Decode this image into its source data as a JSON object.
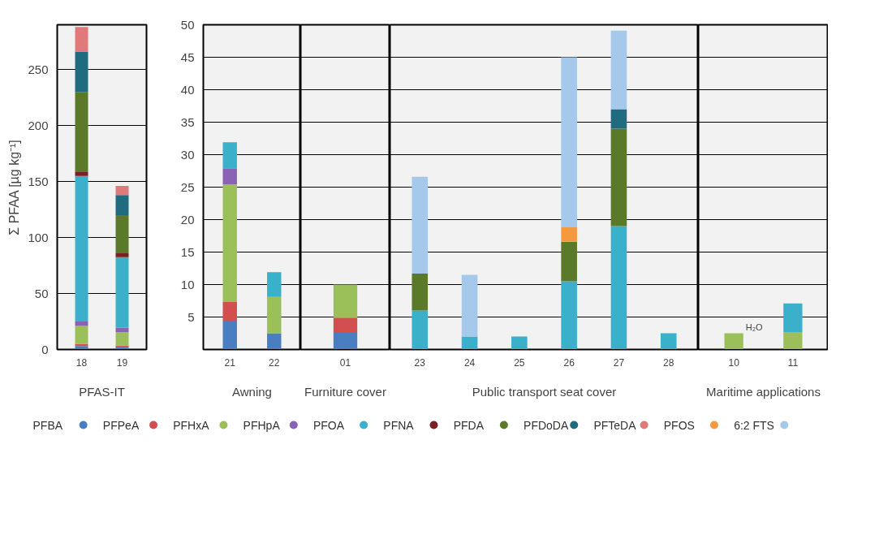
{
  "chart_data": [
    {
      "type": "bar",
      "stacked": true,
      "xlabel": "PFAS-IT",
      "ylabel": "Σ PFAA [µg kg⁻¹]",
      "categories": [
        "18",
        "19"
      ],
      "ylim": [
        0,
        290
      ],
      "yticks": [
        0,
        50,
        100,
        150,
        200,
        250
      ],
      "grid": "y",
      "legend": "bottom",
      "series": [
        {
          "name": "PFBA",
          "color": "#4a7ec2",
          "values": [
            3,
            2
          ]
        },
        {
          "name": "PFPeA",
          "color": "#d24f4f",
          "values": [
            2,
            1.5
          ]
        },
        {
          "name": "PFHxA",
          "color": "#9bc05a",
          "values": [
            16,
            12
          ]
        },
        {
          "name": "PFHpA",
          "color": "#8a63b5",
          "values": [
            4,
            4
          ]
        },
        {
          "name": "PFOA",
          "color": "#3bb0cb",
          "values": [
            130,
            63
          ]
        },
        {
          "name": "PFNA",
          "color": "#7a1f24",
          "values": [
            4,
            3.5
          ]
        },
        {
          "name": "PFDA",
          "color": "#5a7a2a",
          "values": [
            71,
            34
          ]
        },
        {
          "name": "PFDoDA",
          "color": "#1f6b80",
          "values": [
            36,
            18
          ]
        },
        {
          "name": "PFTeDA",
          "color": "#e07a7a",
          "values": [
            22,
            8
          ]
        },
        {
          "name": "PFOS",
          "color": "#f5993f",
          "values": [
            null,
            null
          ]
        },
        {
          "name": "6:2 FTS",
          "color": "#a5c9ea",
          "values": [
            null,
            null
          ]
        }
      ]
    },
    {
      "type": "bar",
      "stacked": true,
      "xlabel": "Awning",
      "categories": [
        "21",
        "22"
      ],
      "ylim": [
        0,
        50
      ],
      "yticks": [
        5,
        10,
        15,
        20,
        25,
        30,
        35,
        40,
        45,
        50
      ],
      "grid": "y",
      "series": [
        {
          "color": "#4a7ec2",
          "values": [
            4.3,
            2.5
          ]
        },
        {
          "color": "#d24f4f",
          "values": [
            3,
            null
          ]
        },
        {
          "color": "#9bc05a",
          "values": [
            18.1,
            5.6
          ]
        },
        {
          "color": "#8a63b5",
          "values": [
            2.5,
            null
          ]
        },
        {
          "color": "#3bb0cb",
          "values": [
            4,
            3.8
          ]
        }
      ]
    },
    {
      "type": "bar",
      "stacked": true,
      "xlabel": "Furniture cover",
      "categories": [
        "01"
      ],
      "ylim": [
        0,
        50
      ],
      "yticks": [
        5,
        10,
        15,
        20,
        25,
        30,
        35,
        40,
        45,
        50
      ],
      "grid": "y",
      "tick_labels": "x",
      "series": [
        {
          "color": "#4a7ec2",
          "values": [
            2.7
          ]
        },
        {
          "color": "#d24f4f",
          "values": [
            2.2
          ]
        },
        {
          "color": "#9bc05a",
          "values": [
            5.1
          ]
        }
      ]
    },
    {
      "type": "bar",
      "stacked": true,
      "xlabel": "Public transport seat cover",
      "categories": [
        "23",
        "24",
        "25",
        "26",
        "27",
        "28"
      ],
      "ylim": [
        0,
        50
      ],
      "yticks": [
        5,
        10,
        15,
        20,
        25,
        30,
        35,
        40,
        45,
        50
      ],
      "grid": "y",
      "tick_labels": "x",
      "series": [
        {
          "color": "#3bb0cb",
          "values": [
            6,
            2,
            2,
            10.5,
            19,
            2.5
          ]
        },
        {
          "color": "#5a7a2a",
          "values": [
            5.7,
            null,
            null,
            6.1,
            15,
            null
          ]
        },
        {
          "color": "#1f6b80",
          "values": [
            null,
            null,
            null,
            null,
            3,
            null
          ]
        },
        {
          "color": "#f5993f",
          "values": [
            null,
            null,
            null,
            2.2,
            null,
            null
          ]
        },
        {
          "color": "#a5c9ea",
          "values": [
            14.9,
            9.5,
            null,
            26.2,
            12.1,
            null
          ]
        }
      ]
    },
    {
      "type": "bar",
      "stacked": true,
      "xlabel": "Maritime applications",
      "categories": [
        "10",
        "11"
      ],
      "ylim": [
        0,
        50
      ],
      "yticks": [
        5,
        10,
        15,
        20,
        25,
        30,
        35,
        40,
        45,
        50
      ],
      "grid": "y",
      "tick_labels": "x",
      "annotations": [
        {
          "text": "H₂O",
          "x": "10",
          "y": 2.5
        }
      ],
      "series": [
        {
          "color": "#9bc05a",
          "values": [
            2.5,
            2.7
          ]
        },
        {
          "color": "#3bb0cb",
          "values": [
            null,
            4.4
          ]
        }
      ]
    }
  ]
}
